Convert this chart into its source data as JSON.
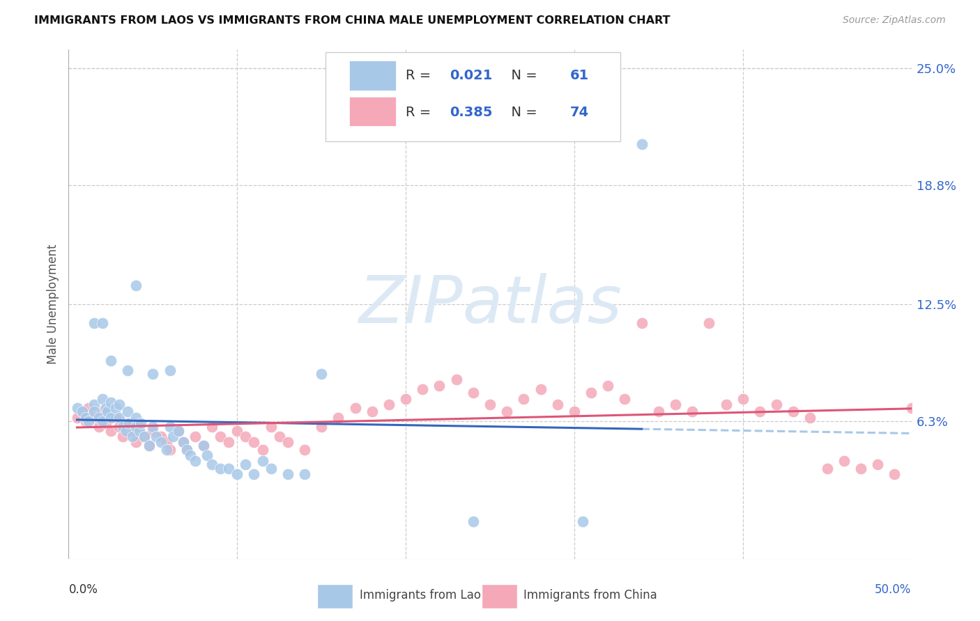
{
  "title": "IMMIGRANTS FROM LAOS VS IMMIGRANTS FROM CHINA MALE UNEMPLOYMENT CORRELATION CHART",
  "source": "Source: ZipAtlas.com",
  "ylabel": "Male Unemployment",
  "xlim": [
    0.0,
    0.5
  ],
  "ylim": [
    -0.01,
    0.26
  ],
  "yticks": [
    0.063,
    0.125,
    0.188,
    0.25
  ],
  "ytick_labels": [
    "6.3%",
    "12.5%",
    "18.8%",
    "25.0%"
  ],
  "xtick_positions": [
    0.0,
    0.1,
    0.2,
    0.3,
    0.4,
    0.5
  ],
  "background_color": "#ffffff",
  "grid_color": "#cccccc",
  "laos_color": "#a8c8e8",
  "china_color": "#f4a8b8",
  "laos_line_color": "#3366bb",
  "china_line_color": "#dd5577",
  "laos_dash_color": "#a8c8e8",
  "r_value_color": "#3366cc",
  "n_value_color": "#cc2222",
  "laos_R": "0.021",
  "laos_N": "61",
  "china_R": "0.385",
  "china_N": "74",
  "watermark_text": "ZIPatlas",
  "watermark_color": "#dce9f5",
  "legend_label1": "Immigrants from Laos",
  "legend_label2": "Immigrants from China",
  "laos_x": [
    0.005,
    0.008,
    0.01,
    0.012,
    0.015,
    0.015,
    0.018,
    0.02,
    0.02,
    0.022,
    0.023,
    0.025,
    0.025,
    0.028,
    0.03,
    0.03,
    0.032,
    0.034,
    0.035,
    0.036,
    0.038,
    0.04,
    0.04,
    0.042,
    0.043,
    0.045,
    0.048,
    0.05,
    0.052,
    0.055,
    0.058,
    0.06,
    0.062,
    0.065,
    0.068,
    0.07,
    0.072,
    0.075,
    0.08,
    0.082,
    0.085,
    0.09,
    0.095,
    0.1,
    0.105,
    0.11,
    0.115,
    0.12,
    0.13,
    0.14,
    0.015,
    0.02,
    0.025,
    0.035,
    0.04,
    0.05,
    0.06,
    0.15,
    0.24,
    0.305,
    0.34
  ],
  "laos_y": [
    0.07,
    0.068,
    0.065,
    0.063,
    0.072,
    0.068,
    0.065,
    0.075,
    0.063,
    0.07,
    0.068,
    0.073,
    0.065,
    0.07,
    0.072,
    0.065,
    0.06,
    0.058,
    0.068,
    0.062,
    0.055,
    0.065,
    0.06,
    0.058,
    0.062,
    0.055,
    0.05,
    0.06,
    0.055,
    0.052,
    0.048,
    0.06,
    0.055,
    0.058,
    0.052,
    0.048,
    0.045,
    0.042,
    0.05,
    0.045,
    0.04,
    0.038,
    0.038,
    0.035,
    0.04,
    0.035,
    0.042,
    0.038,
    0.035,
    0.035,
    0.115,
    0.115,
    0.095,
    0.09,
    0.135,
    0.088,
    0.09,
    0.088,
    0.01,
    0.01,
    0.21
  ],
  "china_x": [
    0.005,
    0.008,
    0.01,
    0.012,
    0.015,
    0.018,
    0.02,
    0.022,
    0.025,
    0.028,
    0.03,
    0.032,
    0.035,
    0.038,
    0.04,
    0.042,
    0.045,
    0.048,
    0.05,
    0.055,
    0.058,
    0.06,
    0.065,
    0.068,
    0.07,
    0.075,
    0.08,
    0.085,
    0.09,
    0.095,
    0.1,
    0.105,
    0.11,
    0.115,
    0.12,
    0.125,
    0.13,
    0.14,
    0.15,
    0.16,
    0.17,
    0.18,
    0.19,
    0.2,
    0.21,
    0.22,
    0.23,
    0.24,
    0.25,
    0.26,
    0.27,
    0.28,
    0.29,
    0.3,
    0.31,
    0.32,
    0.33,
    0.34,
    0.35,
    0.36,
    0.37,
    0.38,
    0.39,
    0.4,
    0.41,
    0.42,
    0.43,
    0.44,
    0.45,
    0.46,
    0.47,
    0.48,
    0.49,
    0.5
  ],
  "china_y": [
    0.065,
    0.068,
    0.063,
    0.07,
    0.065,
    0.06,
    0.068,
    0.062,
    0.058,
    0.065,
    0.06,
    0.055,
    0.062,
    0.058,
    0.052,
    0.06,
    0.055,
    0.05,
    0.058,
    0.055,
    0.052,
    0.048,
    0.058,
    0.052,
    0.048,
    0.055,
    0.05,
    0.06,
    0.055,
    0.052,
    0.058,
    0.055,
    0.052,
    0.048,
    0.06,
    0.055,
    0.052,
    0.048,
    0.06,
    0.065,
    0.07,
    0.068,
    0.072,
    0.075,
    0.08,
    0.082,
    0.085,
    0.078,
    0.072,
    0.068,
    0.075,
    0.08,
    0.072,
    0.068,
    0.078,
    0.082,
    0.075,
    0.115,
    0.068,
    0.072,
    0.068,
    0.115,
    0.072,
    0.075,
    0.068,
    0.072,
    0.068,
    0.065,
    0.038,
    0.042,
    0.038,
    0.04,
    0.035,
    0.07
  ]
}
